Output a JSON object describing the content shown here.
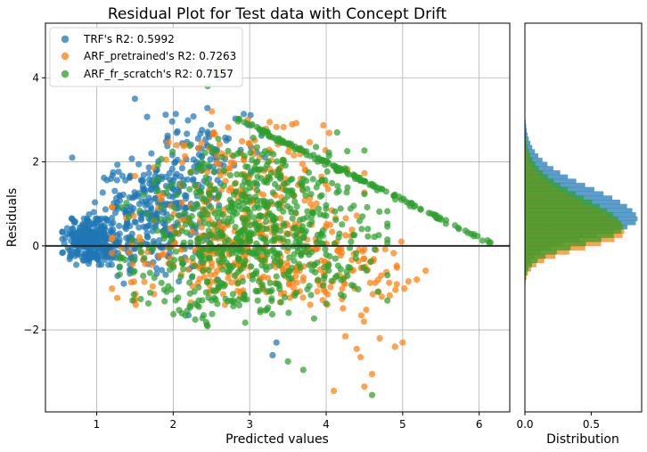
{
  "chart_data": [
    {
      "type": "scatter",
      "title": "Residual Plot for Test data with Concept Drift",
      "xlabel": "Predicted values",
      "ylabel": "Residuals",
      "xlim": [
        0.33,
        6.4
      ],
      "ylim": [
        -3.95,
        5.3
      ],
      "x_ticks": [
        1,
        2,
        3,
        4,
        5,
        6
      ],
      "y_ticks": [
        -2,
        0,
        2,
        4
      ],
      "grid": true,
      "legend": "top-left",
      "reference_line_y": 0,
      "series": [
        {
          "name": "TRF's R2: 0.5992",
          "color": "#1f77b4",
          "clusters": [
            {
              "x": [
                0.55,
                1.3
              ],
              "y": [
                -0.45,
                0.65
              ],
              "n": 260
            },
            {
              "x": [
                0.9,
                2.6
              ],
              "y": [
                -0.9,
                2.2
              ],
              "n": 330
            },
            {
              "x": [
                1.6,
                3.2
              ],
              "y": [
                1.0,
                3.4
              ],
              "n": 90
            }
          ],
          "outliers": [
            {
              "x": 0.68,
              "y": 2.1
            },
            {
              "x": 2.6,
              "y": 4.0
            },
            {
              "x": 1.5,
              "y": 3.5
            },
            {
              "x": 3.3,
              "y": -2.6
            },
            {
              "x": 3.35,
              "y": -2.3
            },
            {
              "x": 2.2,
              "y": -1.65
            }
          ]
        },
        {
          "name": "ARF_pretrained's R2: 0.7263",
          "color": "#ff7f0e",
          "clusters": [
            {
              "x": [
                1.2,
                4.5
              ],
              "y": [
                -1.4,
                1.2
              ],
              "n": 320
            },
            {
              "x": [
                1.5,
                4.5
              ],
              "y": [
                0.5,
                3.2
              ],
              "n": 140
            },
            {
              "x": [
                3.4,
                5.3
              ],
              "y": [
                -1.8,
                0.6
              ],
              "n": 70
            }
          ],
          "outliers": [
            {
              "x": 4.1,
              "y": -3.45
            },
            {
              "x": 4.5,
              "y": -3.35
            },
            {
              "x": 4.6,
              "y": -3.05
            },
            {
              "x": 4.4,
              "y": -2.45
            },
            {
              "x": 4.7,
              "y": -2.2
            },
            {
              "x": 4.25,
              "y": -2.15
            },
            {
              "x": 4.9,
              "y": -2.4
            },
            {
              "x": 5.0,
              "y": -2.3
            },
            {
              "x": 4.45,
              "y": -2.65
            },
            {
              "x": 2.6,
              "y": 4.2
            }
          ]
        },
        {
          "name": "ARF_fr_scratch's R2: 0.7157",
          "color": "#2ca02c",
          "clusters": [
            {
              "x": [
                1.3,
                4.8
              ],
              "y": [
                -1.3,
                1.5
              ],
              "n": 480
            },
            {
              "x": [
                1.8,
                4.5
              ],
              "y": [
                0.6,
                2.7
              ],
              "n": 170
            },
            {
              "x": [
                1.4,
                4.0
              ],
              "y": [
                -1.95,
                -0.7
              ],
              "n": 70
            }
          ],
          "upper_edge": {
            "x": [
              2.8,
              6.15
            ],
            "y": [
              3.1,
              0.1
            ],
            "n": 140
          },
          "outliers": [
            {
              "x": 4.6,
              "y": -3.55
            },
            {
              "x": 3.7,
              "y": -2.95
            },
            {
              "x": 3.5,
              "y": -2.75
            },
            {
              "x": 2.55,
              "y": 4.1
            },
            {
              "x": 2.45,
              "y": 3.8
            }
          ]
        }
      ]
    },
    {
      "type": "histogram",
      "xlabel": "Distribution",
      "orientation": "horizontal",
      "x_ticks": [
        0.0,
        0.5
      ],
      "xlim": [
        0.0,
        0.88
      ],
      "shares_y_with": 0,
      "series": [
        {
          "color": "#1f77b4",
          "mean": 0.62,
          "sd": 0.39,
          "peak": 0.85
        },
        {
          "color": "#ff7f0e",
          "mean": 0.32,
          "sd": 0.37,
          "peak": 0.75
        },
        {
          "color": "#2ca02c",
          "mean": 0.42,
          "sd": 0.38,
          "peak": 0.74
        }
      ]
    }
  ]
}
